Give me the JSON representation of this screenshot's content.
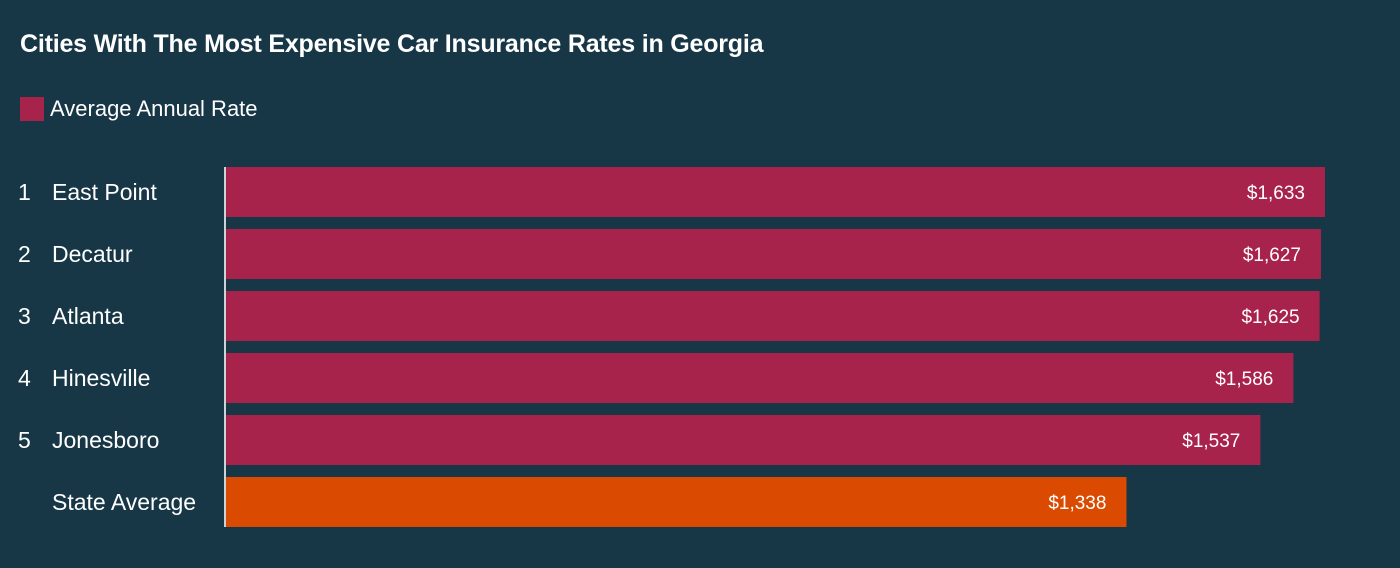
{
  "chart_data": {
    "type": "bar",
    "orientation": "horizontal",
    "title": "Cities With The Most Expensive Car Insurance Rates in Georgia",
    "legend": [
      {
        "name": "Average Annual Rate",
        "color": "#a8234b"
      }
    ],
    "legend_placement": "top-left",
    "grid": false,
    "xlim": [
      0,
      1633
    ],
    "rows": [
      {
        "rank": "1",
        "label": "East Point",
        "value": 1633,
        "value_label": "$1,633",
        "color": "#a8234b"
      },
      {
        "rank": "2",
        "label": "Decatur",
        "value": 1627,
        "value_label": "$1,627",
        "color": "#a8234b"
      },
      {
        "rank": "3",
        "label": "Atlanta",
        "value": 1625,
        "value_label": "$1,625",
        "color": "#a8234b"
      },
      {
        "rank": "4",
        "label": "Hinesville",
        "value": 1586,
        "value_label": "$1,586",
        "color": "#a8234b"
      },
      {
        "rank": "5",
        "label": "Jonesboro",
        "value": 1537,
        "value_label": "$1,537",
        "color": "#a8234b"
      },
      {
        "rank": "",
        "label": "State Average",
        "value": 1338,
        "value_label": "$1,338",
        "color": "#da4a00"
      }
    ]
  }
}
